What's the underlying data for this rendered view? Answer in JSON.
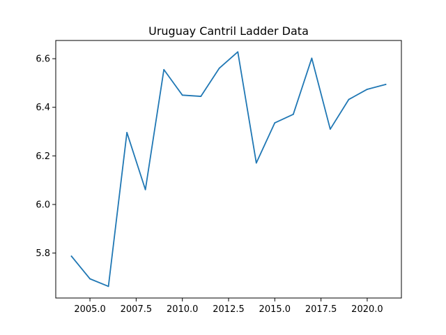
{
  "chart_data": {
    "type": "line",
    "title": "Uruguay Cantril Ladder Data",
    "xlabel": "",
    "ylabel": "",
    "xlim": [
      2003.15,
      2021.85
    ],
    "ylim": [
      5.615,
      6.675
    ],
    "grid": false,
    "x_ticks": [
      2005.0,
      2007.5,
      2010.0,
      2012.5,
      2015.0,
      2017.5,
      2020.0
    ],
    "x_tick_labels": [
      "2005.0",
      "2007.5",
      "2010.0",
      "2012.5",
      "2015.0",
      "2017.5",
      "2020.0"
    ],
    "y_ticks": [
      5.8,
      6.0,
      6.2,
      6.4,
      6.6
    ],
    "y_tick_labels": [
      "5.8",
      "6.0",
      "6.2",
      "6.4",
      "6.6"
    ],
    "series": [
      {
        "color": "#1f77b4",
        "x": [
          2004,
          2005,
          2006,
          2007,
          2008,
          2009,
          2010,
          2011,
          2012,
          2013,
          2014,
          2015,
          2016,
          2017,
          2018,
          2019,
          2020,
          2021
        ],
        "values": [
          5.787,
          5.694,
          5.663,
          6.296,
          6.061,
          6.555,
          6.45,
          6.445,
          6.561,
          6.628,
          6.171,
          6.336,
          6.371,
          6.602,
          6.31,
          6.432,
          6.474,
          6.494
        ]
      }
    ]
  }
}
